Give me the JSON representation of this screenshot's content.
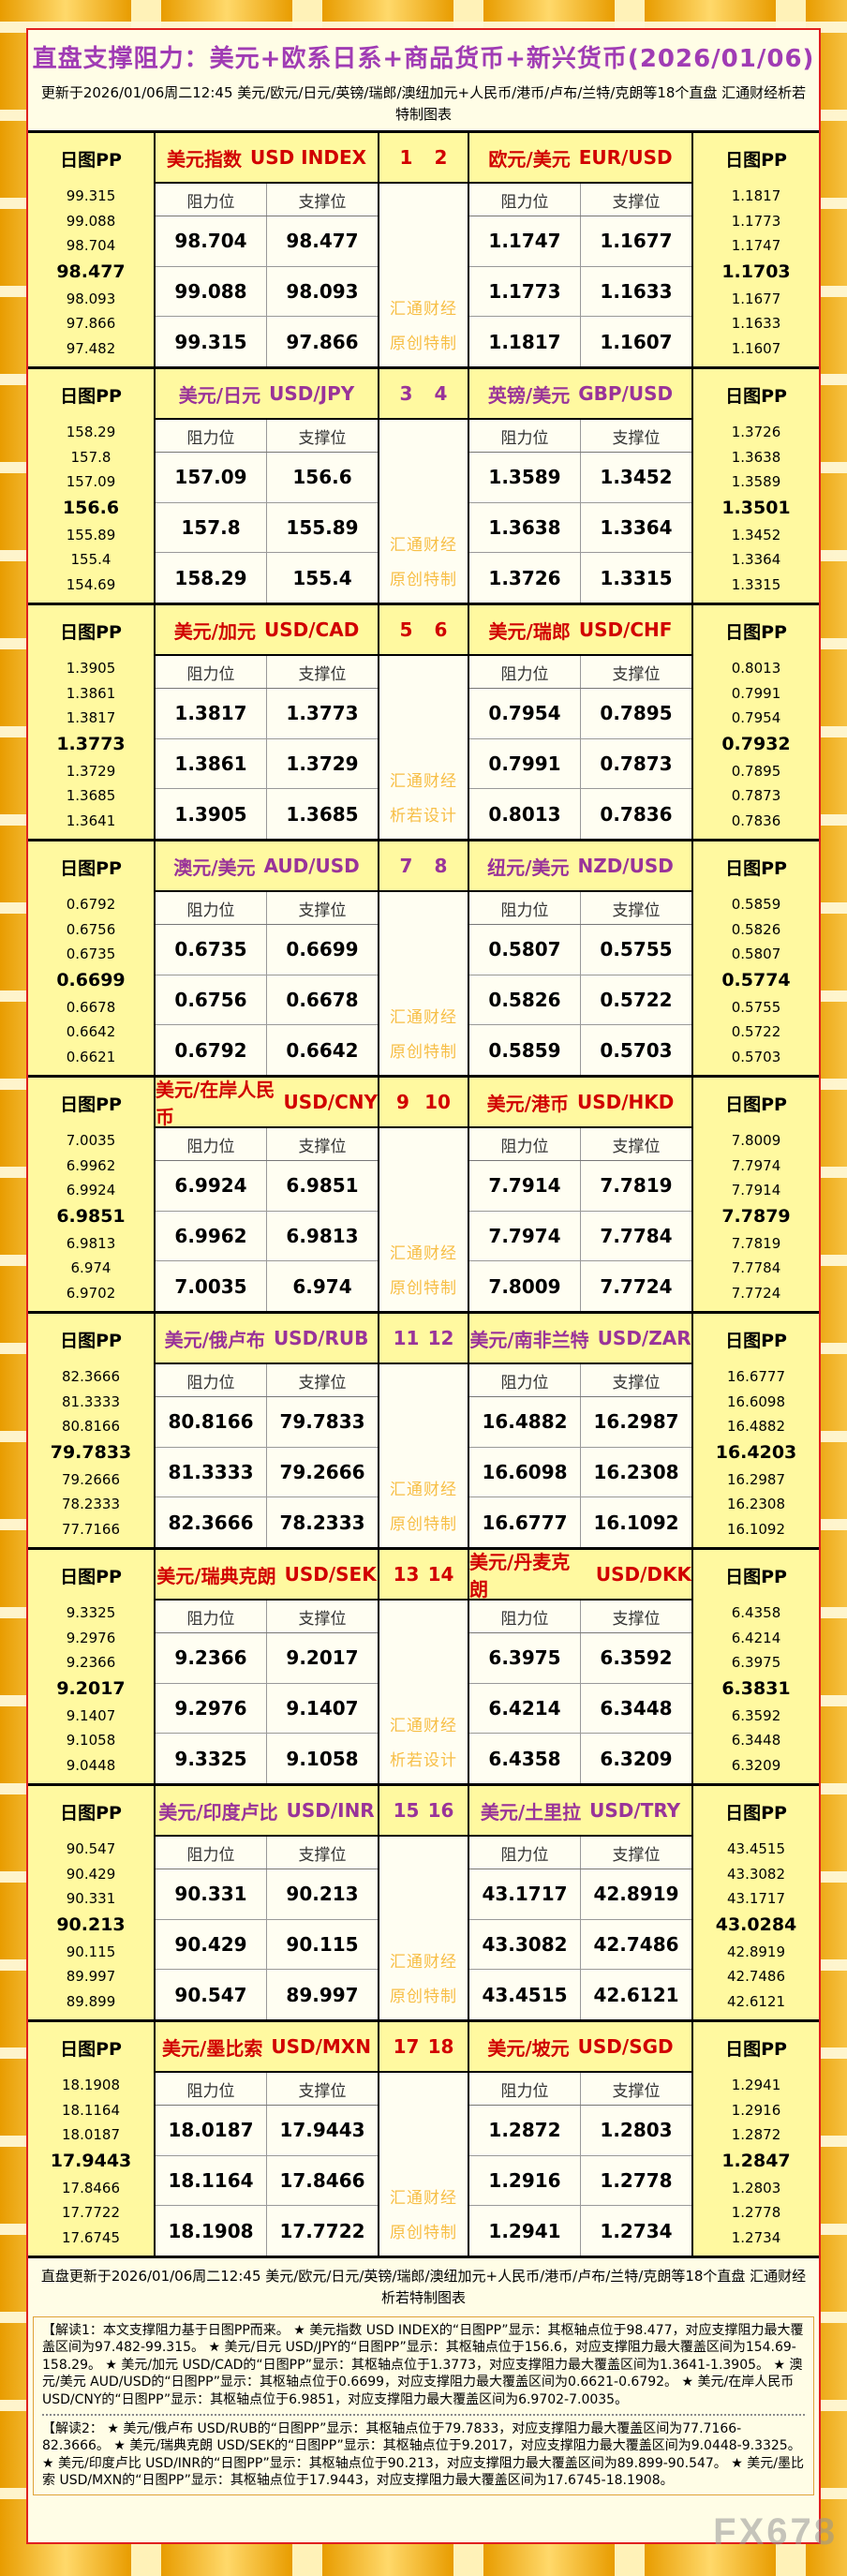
{
  "page": {
    "title": "直盘支撑阻力：美元+欧系日系+商品货币+新兴货币(2026/01/06)",
    "subtitle": "更新于2026/01/06周二12:45 美元/欧元/日元/英镑/瑞郎/澳纽加元+人民币/港币/卢布/兰特/克朗等18个直盘 汇通财经析若特制图表",
    "footer": "直盘更新于2026/01/06周二12:45 美元/欧元/日元/英镑/瑞郎/澳纽加元+人民币/港币/卢布/兰特/克朗等18个直盘 汇通财经析若特制图表",
    "fx_watermark": "FX678"
  },
  "labels": {
    "pp": "日图PP",
    "resistance": "阻力位",
    "support": "支撑位",
    "watermark_line1": "汇通财经"
  },
  "colors": {
    "accent_red": "#D10000",
    "accent_purple": "#993399",
    "header_bg": "#FFF9A0",
    "sheet_bg": "#FFFDE6",
    "cell_bg": "#FFFEF2",
    "watermark_gold": "#F7BE45",
    "border_red": "#E02020",
    "title_purple": "#A03CB4",
    "gold_tile": "#E89C00"
  },
  "layout": {
    "rows": [
      {
        "numbers": [
          "1",
          "2"
        ],
        "accent": "red",
        "watermark_line2": "原创特制",
        "pairs": [
          0,
          1
        ]
      },
      {
        "numbers": [
          "3",
          "4"
        ],
        "accent": "purple",
        "watermark_line2": "原创特制",
        "pairs": [
          2,
          3
        ]
      },
      {
        "numbers": [
          "5",
          "6"
        ],
        "accent": "red",
        "watermark_line2": "析若设计",
        "pairs": [
          4,
          5
        ]
      },
      {
        "numbers": [
          "7",
          "8"
        ],
        "accent": "purple",
        "watermark_line2": "原创特制",
        "pairs": [
          6,
          7
        ]
      },
      {
        "numbers": [
          "9",
          "10"
        ],
        "accent": "red",
        "watermark_line2": "原创特制",
        "pairs": [
          8,
          9
        ]
      },
      {
        "numbers": [
          "11",
          "12"
        ],
        "accent": "purple",
        "watermark_line2": "原创特制",
        "pairs": [
          10,
          11
        ]
      },
      {
        "numbers": [
          "13",
          "14"
        ],
        "accent": "red",
        "watermark_line2": "析若设计",
        "pairs": [
          12,
          13
        ]
      },
      {
        "numbers": [
          "15",
          "16"
        ],
        "accent": "purple",
        "watermark_line2": "原创特制",
        "pairs": [
          14,
          15
        ]
      },
      {
        "numbers": [
          "17",
          "18"
        ],
        "accent": "red",
        "watermark_line2": "原创特制",
        "pairs": [
          16,
          17
        ]
      }
    ]
  },
  "chart_data": {
    "type": "table",
    "title": "直盘支撑阻力：美元+欧系日系+商品货币+新兴货币(2026/01/06)",
    "updated": "2026/01/06周二12:45",
    "columns": [
      "日图PP(7档,中间为枢轴点)",
      "阻力位(3档)",
      "支撑位(3档)"
    ],
    "pairs": [
      {
        "name_cn": "美元指数",
        "name_en": "USD INDEX",
        "pp": [
          "99.315",
          "99.088",
          "98.704",
          "98.477",
          "98.093",
          "97.866",
          "97.482"
        ],
        "levels": [
          [
            "98.704",
            "98.477"
          ],
          [
            "99.088",
            "98.093"
          ],
          [
            "99.315",
            "97.866"
          ]
        ]
      },
      {
        "name_cn": "欧元/美元",
        "name_en": "EUR/USD",
        "pp": [
          "1.1817",
          "1.1773",
          "1.1747",
          "1.1703",
          "1.1677",
          "1.1633",
          "1.1607"
        ],
        "levels": [
          [
            "1.1747",
            "1.1677"
          ],
          [
            "1.1773",
            "1.1633"
          ],
          [
            "1.1817",
            "1.1607"
          ]
        ]
      },
      {
        "name_cn": "美元/日元",
        "name_en": "USD/JPY",
        "pp": [
          "158.29",
          "157.8",
          "157.09",
          "156.6",
          "155.89",
          "155.4",
          "154.69"
        ],
        "levels": [
          [
            "157.09",
            "156.6"
          ],
          [
            "157.8",
            "155.89"
          ],
          [
            "158.29",
            "155.4"
          ]
        ]
      },
      {
        "name_cn": "英镑/美元",
        "name_en": "GBP/USD",
        "pp": [
          "1.3726",
          "1.3638",
          "1.3589",
          "1.3501",
          "1.3452",
          "1.3364",
          "1.3315"
        ],
        "levels": [
          [
            "1.3589",
            "1.3452"
          ],
          [
            "1.3638",
            "1.3364"
          ],
          [
            "1.3726",
            "1.3315"
          ]
        ]
      },
      {
        "name_cn": "美元/加元",
        "name_en": "USD/CAD",
        "pp": [
          "1.3905",
          "1.3861",
          "1.3817",
          "1.3773",
          "1.3729",
          "1.3685",
          "1.3641"
        ],
        "levels": [
          [
            "1.3817",
            "1.3773"
          ],
          [
            "1.3861",
            "1.3729"
          ],
          [
            "1.3905",
            "1.3685"
          ]
        ]
      },
      {
        "name_cn": "美元/瑞郎",
        "name_en": "USD/CHF",
        "pp": [
          "0.8013",
          "0.7991",
          "0.7954",
          "0.7932",
          "0.7895",
          "0.7873",
          "0.7836"
        ],
        "levels": [
          [
            "0.7954",
            "0.7895"
          ],
          [
            "0.7991",
            "0.7873"
          ],
          [
            "0.8013",
            "0.7836"
          ]
        ]
      },
      {
        "name_cn": "澳元/美元",
        "name_en": "AUD/USD",
        "pp": [
          "0.6792",
          "0.6756",
          "0.6735",
          "0.6699",
          "0.6678",
          "0.6642",
          "0.6621"
        ],
        "levels": [
          [
            "0.6735",
            "0.6699"
          ],
          [
            "0.6756",
            "0.6678"
          ],
          [
            "0.6792",
            "0.6642"
          ]
        ]
      },
      {
        "name_cn": "纽元/美元",
        "name_en": "NZD/USD",
        "pp": [
          "0.5859",
          "0.5826",
          "0.5807",
          "0.5774",
          "0.5755",
          "0.5722",
          "0.5703"
        ],
        "levels": [
          [
            "0.5807",
            "0.5755"
          ],
          [
            "0.5826",
            "0.5722"
          ],
          [
            "0.5859",
            "0.5703"
          ]
        ]
      },
      {
        "name_cn": "美元/在岸人民币",
        "name_en": "USD/CNY",
        "pp": [
          "7.0035",
          "6.9962",
          "6.9924",
          "6.9851",
          "6.9813",
          "6.974",
          "6.9702"
        ],
        "levels": [
          [
            "6.9924",
            "6.9851"
          ],
          [
            "6.9962",
            "6.9813"
          ],
          [
            "7.0035",
            "6.974"
          ]
        ]
      },
      {
        "name_cn": "美元/港币",
        "name_en": "USD/HKD",
        "pp": [
          "7.8009",
          "7.7974",
          "7.7914",
          "7.7879",
          "7.7819",
          "7.7784",
          "7.7724"
        ],
        "levels": [
          [
            "7.7914",
            "7.7819"
          ],
          [
            "7.7974",
            "7.7784"
          ],
          [
            "7.8009",
            "7.7724"
          ]
        ]
      },
      {
        "name_cn": "美元/俄卢布",
        "name_en": "USD/RUB",
        "pp": [
          "82.3666",
          "81.3333",
          "80.8166",
          "79.7833",
          "79.2666",
          "78.2333",
          "77.7166"
        ],
        "levels": [
          [
            "80.8166",
            "79.7833"
          ],
          [
            "81.3333",
            "79.2666"
          ],
          [
            "82.3666",
            "78.2333"
          ]
        ]
      },
      {
        "name_cn": "美元/南非兰特",
        "name_en": "USD/ZAR",
        "pp": [
          "16.6777",
          "16.6098",
          "16.4882",
          "16.4203",
          "16.2987",
          "16.2308",
          "16.1092"
        ],
        "levels": [
          [
            "16.4882",
            "16.2987"
          ],
          [
            "16.6098",
            "16.2308"
          ],
          [
            "16.6777",
            "16.1092"
          ]
        ]
      },
      {
        "name_cn": "美元/瑞典克朗",
        "name_en": "USD/SEK",
        "pp": [
          "9.3325",
          "9.2976",
          "9.2366",
          "9.2017",
          "9.1407",
          "9.1058",
          "9.0448"
        ],
        "levels": [
          [
            "9.2366",
            "9.2017"
          ],
          [
            "9.2976",
            "9.1407"
          ],
          [
            "9.3325",
            "9.1058"
          ]
        ]
      },
      {
        "name_cn": "美元/丹麦克朗",
        "name_en": "USD/DKK",
        "pp": [
          "6.4358",
          "6.4214",
          "6.3975",
          "6.3831",
          "6.3592",
          "6.3448",
          "6.3209"
        ],
        "levels": [
          [
            "6.3975",
            "6.3592"
          ],
          [
            "6.4214",
            "6.3448"
          ],
          [
            "6.4358",
            "6.3209"
          ]
        ]
      },
      {
        "name_cn": "美元/印度卢比",
        "name_en": "USD/INR",
        "pp": [
          "90.547",
          "90.429",
          "90.331",
          "90.213",
          "90.115",
          "89.997",
          "89.899"
        ],
        "levels": [
          [
            "90.331",
            "90.213"
          ],
          [
            "90.429",
            "90.115"
          ],
          [
            "90.547",
            "89.997"
          ]
        ]
      },
      {
        "name_cn": "美元/土里拉",
        "name_en": "USD/TRY",
        "pp": [
          "43.4515",
          "43.3082",
          "43.1717",
          "43.0284",
          "42.8919",
          "42.7486",
          "42.6121"
        ],
        "levels": [
          [
            "43.1717",
            "42.8919"
          ],
          [
            "43.3082",
            "42.7486"
          ],
          [
            "43.4515",
            "42.6121"
          ]
        ]
      },
      {
        "name_cn": "美元/墨比索",
        "name_en": "USD/MXN",
        "pp": [
          "18.1908",
          "18.1164",
          "18.0187",
          "17.9443",
          "17.8466",
          "17.7722",
          "17.6745"
        ],
        "levels": [
          [
            "18.0187",
            "17.9443"
          ],
          [
            "18.1164",
            "17.8466"
          ],
          [
            "18.1908",
            "17.7722"
          ]
        ]
      },
      {
        "name_cn": "美元/坡元",
        "name_en": "USD/SGD",
        "pp": [
          "1.2941",
          "1.2916",
          "1.2872",
          "1.2847",
          "1.2803",
          "1.2778",
          "1.2734"
        ],
        "levels": [
          [
            "1.2872",
            "1.2803"
          ],
          [
            "1.2916",
            "1.2778"
          ],
          [
            "1.2941",
            "1.2734"
          ]
        ]
      }
    ]
  },
  "notes": {
    "items": [
      "【解读1：本文支撑阻力基于日图PP而来。 ★ 美元指数 USD INDEX的“日图PP”显示：其枢轴点位于98.477，对应支撑阻力最大覆盖区间为97.482-99.315。 ★ 美元/日元 USD/JPY的“日图PP”显示：其枢轴点位于156.6，对应支撑阻力最大覆盖区间为154.69-158.29。 ★ 美元/加元 USD/CAD的“日图PP”显示：其枢轴点位于1.3773，对应支撑阻力最大覆盖区间为1.3641-1.3905。 ★ 澳元/美元 AUD/USD的“日图PP”显示：其枢轴点位于0.6699，对应支撑阻力最大覆盖区间为0.6621-0.6792。 ★ 美元/在岸人民币 USD/CNY的“日图PP”显示：其枢轴点位于6.9851，对应支撑阻力最大覆盖区间为6.9702-7.0035。",
      "【解读2： ★ 美元/俄卢布 USD/RUB的“日图PP”显示：其枢轴点位于79.7833，对应支撑阻力最大覆盖区间为77.7166-82.3666。 ★ 美元/瑞典克朗 USD/SEK的“日图PP”显示：其枢轴点位于9.2017，对应支撑阻力最大覆盖区间为9.0448-9.3325。 ★ 美元/印度卢比 USD/INR的“日图PP”显示：其枢轴点位于90.213，对应支撑阻力最大覆盖区间为89.899-90.547。 ★ 美元/墨比索 USD/MXN的“日图PP”显示：其枢轴点位于17.9443，对应支撑阻力最大覆盖区间为17.6745-18.1908。"
    ]
  }
}
